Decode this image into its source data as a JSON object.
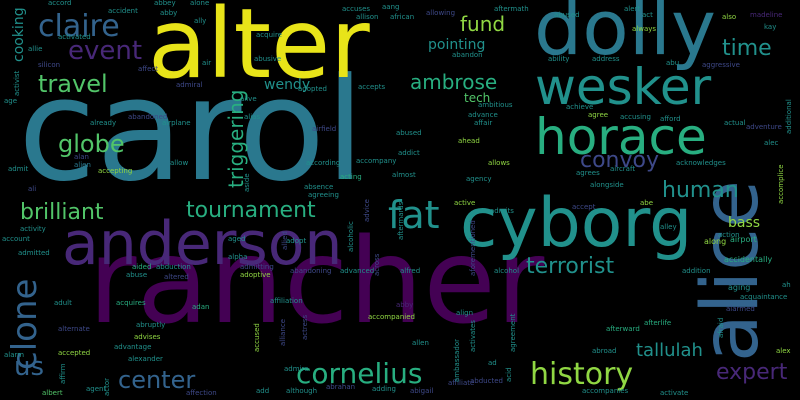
{
  "palette": {
    "background": "#000000",
    "yellow": "#e8e419",
    "green": "#52c569",
    "lime": "#90d743",
    "teal": "#2a788e",
    "blue": "#33638d",
    "dark_purple": "#440154",
    "purple": "#482878",
    "indigo": "#3e4989",
    "aqua": "#21918c",
    "seagreen": "#28ae80"
  },
  "words": {
    "carol": "carol",
    "rancher": "rancher",
    "alter": "alter",
    "dolly": "dolly",
    "cyborg": "cyborg",
    "anderson": "anderson",
    "alice": "alice",
    "horace": "horace",
    "wesker": "wesker",
    "claire": "claire",
    "event": "event",
    "travel": "travel",
    "globe": "globe",
    "brilliant": "brilliant",
    "tournament": "tournament",
    "fat": "fat",
    "clone": "clone",
    "us": "us",
    "center": "center",
    "cornelius": "cornelius",
    "history": "history",
    "expert": "expert",
    "terrorist": "terrorist",
    "human": "human",
    "convoy": "convoy",
    "time": "time",
    "fund": "fund",
    "pointing": "pointing",
    "ambrose": "ambrose",
    "triggering": "triggering",
    "tallulah": "tallulah",
    "wendy": "wendy",
    "bass": "bass",
    "cooking": "cooking",
    "tech": "tech",
    "airport": "airport",
    "along": "along",
    "accidentally": "accidentally",
    "aging": "aging",
    "alien": "alien",
    "alan": "alan",
    "aided": "aided",
    "adan": "adan",
    "adult": "adult",
    "accepted": "accepted",
    "abruptly": "abruptly",
    "advises": "advises",
    "advantage": "advantage",
    "alexander": "alexander",
    "affection": "affection",
    "albert": "albert",
    "agent": "agent",
    "add": "add",
    "although": "although",
    "abrahan": "abrahan",
    "adding": "adding",
    "abigail": "abigail",
    "accompanies": "accompanies",
    "activate": "activate",
    "alex": "alex",
    "accompanied": "accompanied",
    "allen": "allen",
    "align": "align",
    "afterlife": "afterlife",
    "afterward": "afterward",
    "abroad": "abroad",
    "acquires": "acquires",
    "abuse": "abuse",
    "abduction": "abduction",
    "adoptive": "adoptive",
    "admitting": "admitting",
    "alpha": "alpha",
    "aged": "aged",
    "abandoning": "abandoning",
    "advanced": "advanced",
    "alfred": "alfred",
    "alcohol": "alcohol",
    "addition": "addition",
    "acting": "acting",
    "almost": "almost",
    "according": "according",
    "absence": "absence",
    "agreeing": "agreeing",
    "accompany": "accompany",
    "addict": "addict",
    "abused": "abused",
    "ahead": "ahead",
    "allows": "allows",
    "agency": "agency",
    "active": "active",
    "admits": "admits",
    "alongside": "alongside",
    "agrees": "agrees",
    "aircraft": "aircraft",
    "acknowledges": "acknowledges",
    "actual": "actual",
    "adventure": "adventure",
    "accomplice": "accomplice",
    "additional": "additional",
    "abandoned": "abandoned",
    "already": "already",
    "airplane": "airplane",
    "accepting": "accepting",
    "allow": "allow",
    "alias": "alias",
    "alive": "alive",
    "admiral": "admiral",
    "adopted": "adopted",
    "accepts": "accepts",
    "ambitious": "ambitious",
    "advance": "advance",
    "affair": "affair",
    "accusing": "accusing",
    "afford": "afford",
    "achieve": "achieve",
    "agree": "agree",
    "ability": "ability",
    "address": "address",
    "abu": "abu",
    "aggressive": "aggressive",
    "abandon": "abandon",
    "aftermath": "aftermath",
    "accuses": "accuses",
    "allison": "allison",
    "african": "african",
    "allowing": "allowing",
    "act": "act",
    "also": "also",
    "always": "always",
    "alert": "alert",
    "abbey": "abbey",
    "abby": "abby",
    "ally": "ally",
    "alone": "alone",
    "accident": "accident",
    "accord": "accord",
    "activated": "activated",
    "acquire": "acquire",
    "abusive": "abusive",
    "air": "air",
    "affect": "affect",
    "allie": "allie",
    "silicon": "silicon",
    "activist": "activist",
    "age": "age",
    "kay": "kay",
    "madeline": "madeline",
    "alec": "alec",
    "ah": "ah",
    "acquaintance": "acquaintance",
    "action": "action",
    "alley": "alley",
    "abe": "abe",
    "accept": "accept",
    "admit": "admit",
    "ali": "ali",
    "account": "account",
    "activity": "activity",
    "admitted": "admitted",
    "alarm": "alarm",
    "affirm": "affirm",
    "ad": "ad",
    "ambassador": "ambassador",
    "abducted": "abducted",
    "acid": "acid",
    "agreement": "agreement",
    "actor": "actor",
    "aforementioned": "aforementioned",
    "allied": "allied",
    "accused": "accused",
    "alliance": "alliance",
    "actress": "actress",
    "activates": "activates",
    "alcoholic": "alcoholic",
    "across": "across",
    "advice": "advice",
    "aftermards": "aftermards",
    "afraid": "afraid",
    "aside": "aside",
    "alarmed": "alarmed",
    "alternate": "alternate",
    "altered": "altered",
    "adopt": "adopt",
    "affiliation": "affiliation",
    "abby2": "abby",
    "affiliate": "affiliate",
    "aang": "aang",
    "airfield": "airfield",
    "abused2": "abused",
    "admire": "admire"
  }
}
